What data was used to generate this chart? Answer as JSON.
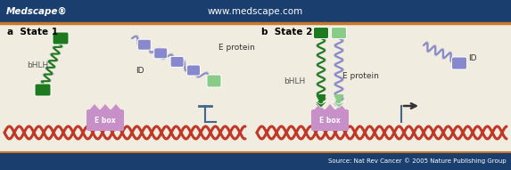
{
  "header_bg": "#1a3f6f",
  "header_text_left": "Medscape®",
  "header_text_center": "www.medscape.com",
  "header_text_color": "#ffffff",
  "footer_bg": "#1a3f6f",
  "footer_text": "Source: Nat Rev Cancer © 2005 Nature Publishing Group",
  "body_bg": "#f0ece0",
  "orange_bar_color": "#c87828",
  "label_a": "a  State 1",
  "label_b": "b  State 2",
  "label_bHLH_a": "bHLH",
  "label_ID_a": "ID",
  "label_Eprotein_a": "E protein",
  "label_bHLH_b": "bHLH",
  "label_Eprotein_b": "E protein",
  "label_ID_b": "ID",
  "label_Ebox": "E box",
  "dna_color": "#c03828",
  "ebox_color": "#c890c8",
  "bHLH_color_dark": "#1e7a1e",
  "bHLH_color_light": "#4aaa4a",
  "Eprotein_color": "#8888cc",
  "ID_color": "#8888cc",
  "green_light": "#88cc88",
  "tss_color": "#446688"
}
